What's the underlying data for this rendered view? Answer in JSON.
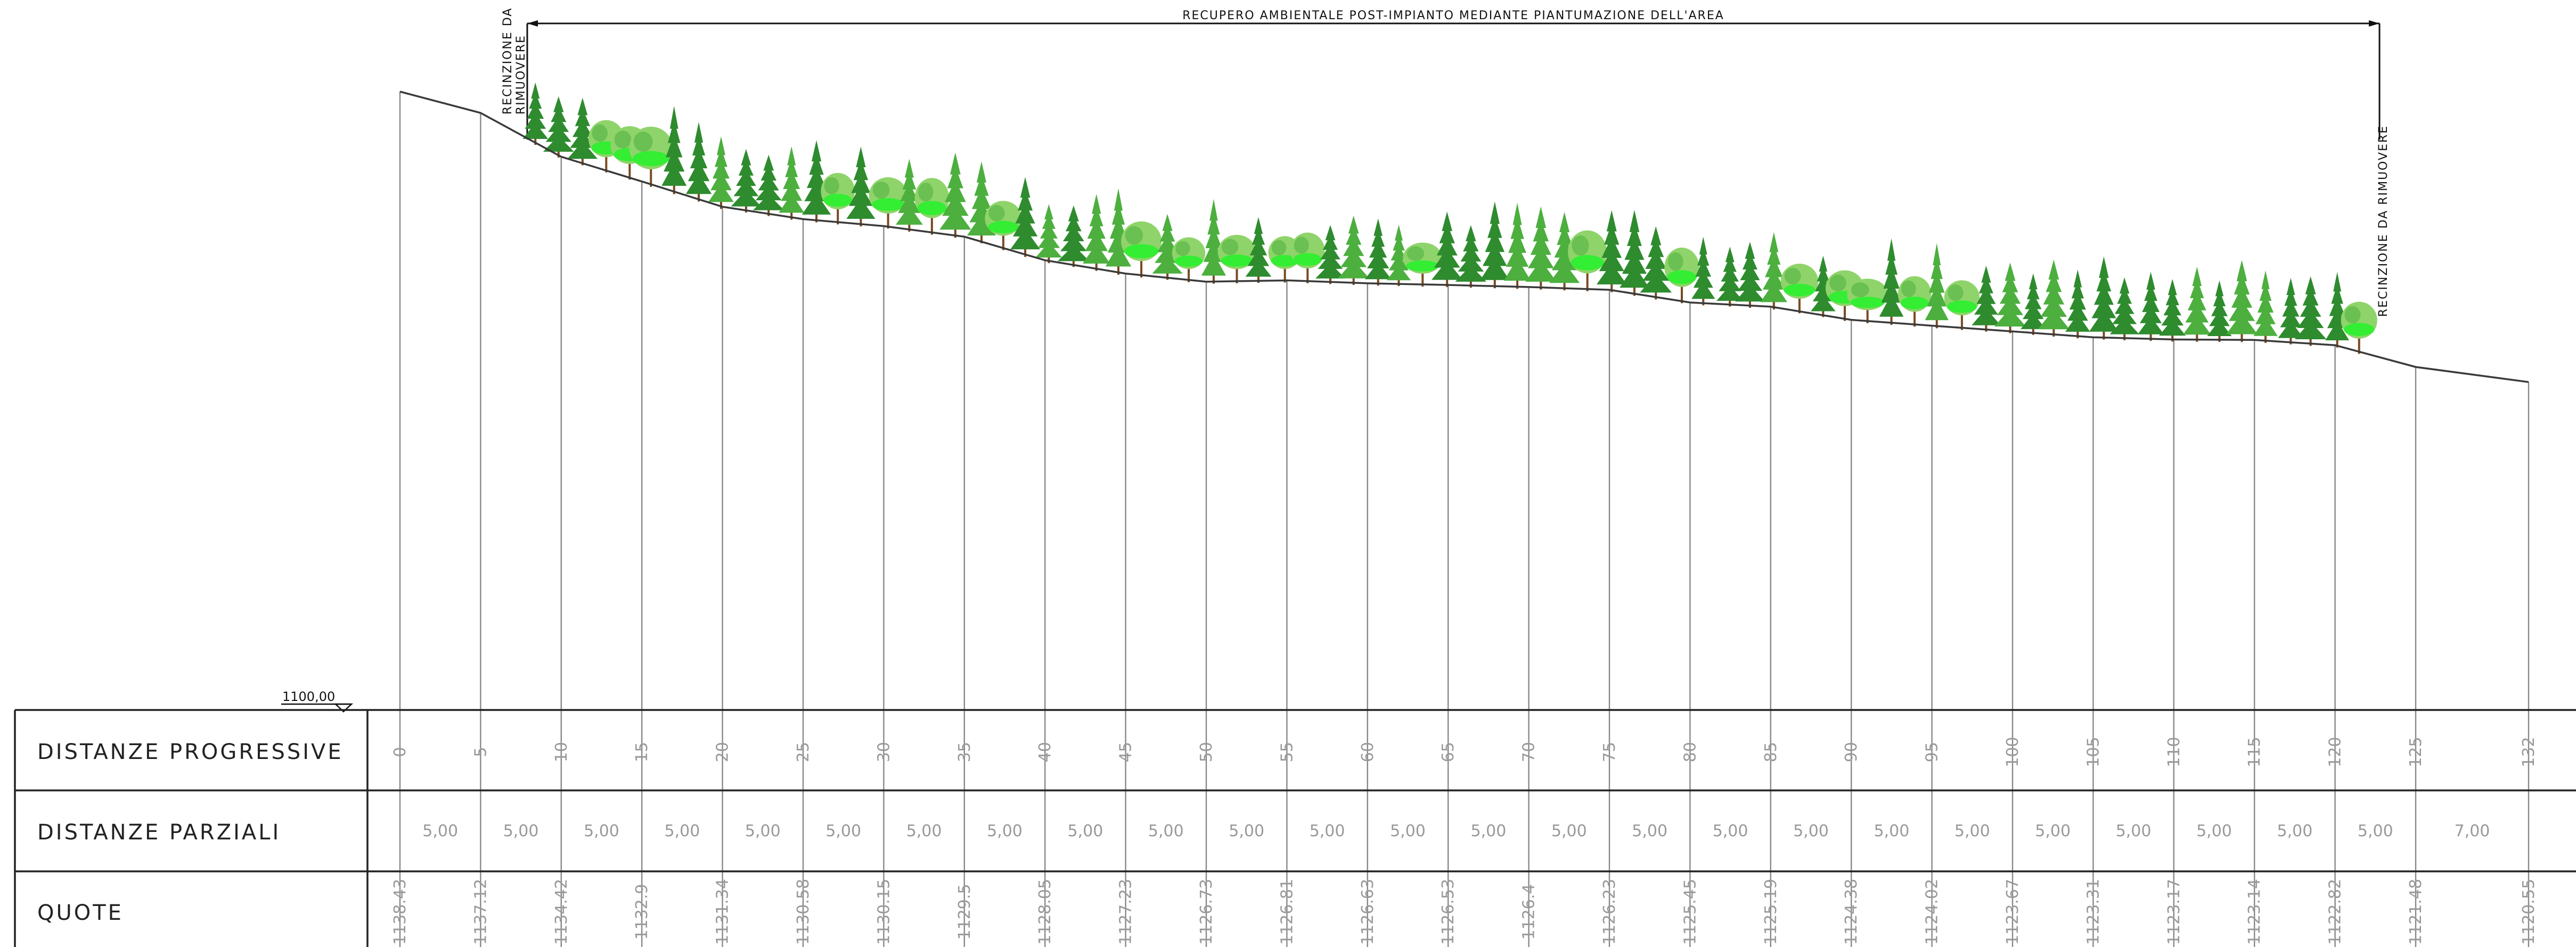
{
  "title_note": "RECUPERO AMBIENTALE POST-IMPIANTO MEDIANTE PIANTUMAZIONE DELL'AREA",
  "left_note": {
    "line1": "RECINZIONE DA",
    "line2": "RIMUOVERE"
  },
  "right_note": "RECINZIONE DA RIMUOVERE",
  "datum_label": "1100,00",
  "row_labels": {
    "progressive": "DISTANZE  PROGRESSIVE",
    "partial": "DISTANZE  PARZIALI",
    "elevations": "QUOTE"
  },
  "chart_data": {
    "type": "line",
    "progressive": [
      "0",
      "5",
      "10",
      "15",
      "20",
      "25",
      "30",
      "35",
      "40",
      "45",
      "50",
      "55",
      "60",
      "65",
      "70",
      "75",
      "80",
      "85",
      "90",
      "95",
      "100",
      "105",
      "110",
      "115",
      "120",
      "125",
      "132"
    ],
    "x": [
      0,
      5,
      10,
      15,
      20,
      25,
      30,
      35,
      40,
      45,
      50,
      55,
      60,
      65,
      70,
      75,
      80,
      85,
      90,
      95,
      100,
      105,
      110,
      115,
      120,
      125,
      132
    ],
    "partial": [
      "5,00",
      "5,00",
      "5,00",
      "5,00",
      "5,00",
      "5,00",
      "5,00",
      "5,00",
      "5,00",
      "5,00",
      "5,00",
      "5,00",
      "5,00",
      "5,00",
      "5,00",
      "5,00",
      "5,00",
      "5,00",
      "5,00",
      "5,00",
      "5,00",
      "5,00",
      "5,00",
      "5,00",
      "5,00",
      "7,00"
    ],
    "elevation_labels": [
      "1138.43",
      "1137.12",
      "1134.42",
      "1132.9",
      "1131.34",
      "1130.58",
      "1130.15",
      "1129.5",
      "1128.05",
      "1127.23",
      "1126.73",
      "1126.81",
      "1126.63",
      "1126.53",
      "1126.4",
      "1126.23",
      "1125.45",
      "1125.19",
      "1124.38",
      "1124.02",
      "1123.67",
      "1123.31",
      "1123.17",
      "1123.14",
      "1122.82",
      "1121.48",
      "1120.55"
    ],
    "elevations": [
      1138.43,
      1137.12,
      1134.42,
      1132.9,
      1131.34,
      1130.58,
      1130.15,
      1129.5,
      1128.05,
      1127.23,
      1126.73,
      1126.81,
      1126.63,
      1126.53,
      1126.4,
      1126.23,
      1125.45,
      1125.19,
      1124.38,
      1124.02,
      1123.67,
      1123.31,
      1123.17,
      1123.14,
      1122.82,
      1121.48,
      1120.55
    ],
    "datum": 1100.0,
    "planting_range": [
      8,
      123
    ],
    "colors": {
      "tree_dark": "#2e8b2e",
      "tree_mid": "#4caf3e",
      "tree_light": "#8fd46a",
      "tree_bright": "#33ee33",
      "trunk": "#7a4a22"
    }
  }
}
